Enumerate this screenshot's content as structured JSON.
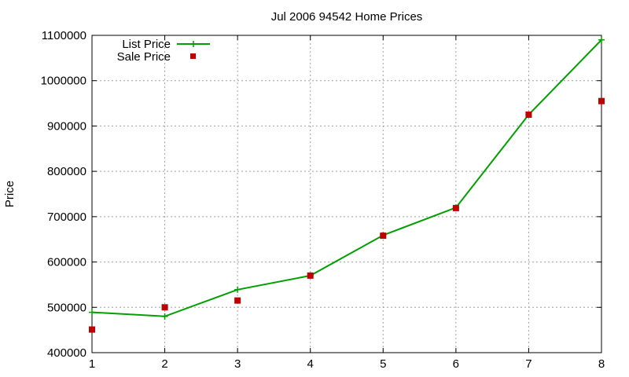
{
  "chart_data": {
    "type": "line",
    "title": "Jul 2006 94542 Home Prices",
    "xlabel": "",
    "ylabel": "Price",
    "xlim": [
      1,
      8
    ],
    "ylim": [
      400000,
      1100000
    ],
    "x": [
      1,
      2,
      3,
      4,
      5,
      6,
      7,
      8
    ],
    "x_ticks": [
      "1",
      "2",
      "3",
      "4",
      "5",
      "6",
      "7",
      "8"
    ],
    "y_ticks": [
      "400000",
      "500000",
      "600000",
      "700000",
      "800000",
      "900000",
      "1000000",
      "1100000"
    ],
    "grid": true,
    "legend_position": "top-left",
    "series": [
      {
        "name": "List Price",
        "style": "linespoints",
        "color": "#00a000",
        "values": [
          489000,
          480000,
          539000,
          570000,
          659000,
          720000,
          925000,
          1090000
        ]
      },
      {
        "name": "Sale Price",
        "style": "points",
        "color": "#c00000",
        "values": [
          451000,
          500000,
          515000,
          570000,
          658000,
          719000,
          925000,
          955000
        ]
      }
    ]
  }
}
